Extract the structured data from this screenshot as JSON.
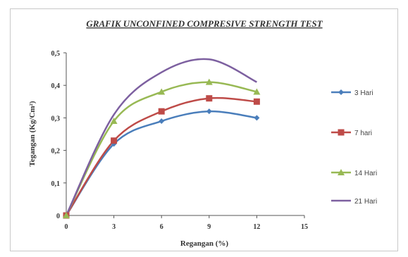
{
  "chart_data": {
    "type": "line",
    "title": "GRAFIK UNCONFINED COMPRESIVE STRENGTH TEST",
    "xlabel": "Regangan (%)",
    "ylabel": "Tegangan (Kg/Cm²)",
    "x_ticks": [
      "0",
      "3",
      "6",
      "9",
      "12",
      "15"
    ],
    "y_ticks": [
      "0",
      "0,1",
      "0,2",
      "0,3",
      "0,4",
      "0,5"
    ],
    "xlim": [
      0,
      15
    ],
    "ylim": [
      0,
      0.5
    ],
    "grid": false,
    "legend_position": "right",
    "x": [
      0,
      3,
      6,
      9,
      12
    ],
    "series": [
      {
        "name": "3 Hari",
        "values": [
          0,
          0.22,
          0.29,
          0.32,
          0.3
        ],
        "color": "#4a7ebb",
        "marker": "diamond"
      },
      {
        "name": "7 hari",
        "values": [
          0,
          0.23,
          0.32,
          0.36,
          0.35
        ],
        "color": "#be4b48",
        "marker": "square"
      },
      {
        "name": "14 Hari",
        "values": [
          0,
          0.29,
          0.38,
          0.41,
          0.38
        ],
        "color": "#98b954",
        "marker": "triangle"
      },
      {
        "name": "21 Hari",
        "values": [
          0,
          0.31,
          0.44,
          0.48,
          0.41
        ],
        "color": "#7d60a0",
        "marker": "none"
      }
    ]
  }
}
